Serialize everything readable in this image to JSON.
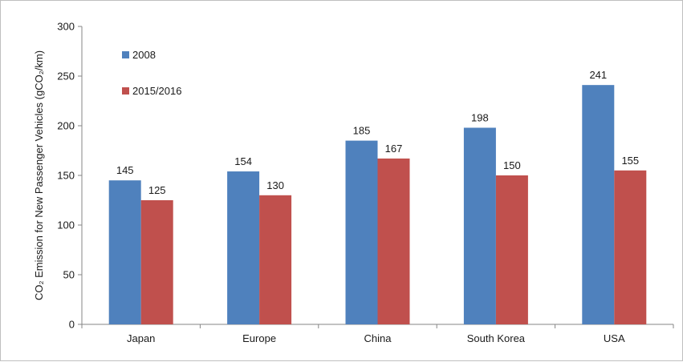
{
  "chart_data": {
    "type": "bar",
    "title": "",
    "xlabel": "",
    "ylabel": "CO₂ Emission  for New Passenger Vehicles (gCO₂/km)",
    "ylim": [
      0,
      300
    ],
    "yticks": [
      0,
      50,
      100,
      150,
      200,
      250,
      300
    ],
    "grid": false,
    "legend_position": "top-left",
    "categories": [
      "Japan",
      "Europe",
      "China",
      "South Korea",
      "USA"
    ],
    "series": [
      {
        "name": "2008",
        "color": "#4f81bd",
        "values": [
          145,
          154,
          185,
          198,
          241
        ]
      },
      {
        "name": "2015/2016",
        "color": "#c0504d",
        "values": [
          125,
          130,
          167,
          150,
          155
        ]
      }
    ]
  }
}
